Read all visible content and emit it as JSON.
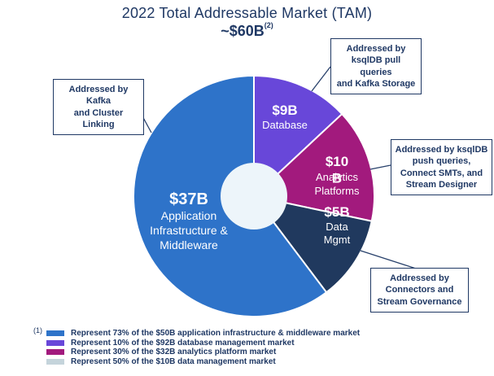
{
  "page": {
    "background": "#FFFFFF",
    "text_color": "#1F3864"
  },
  "title": {
    "line1": "2022 Total Addressable Market (TAM)",
    "line2": "~$60B",
    "line2_superscript": "(2)"
  },
  "chart_data": {
    "type": "pie",
    "title": "2022 Total Addressable Market (TAM)",
    "subtitle": "~$60B",
    "total_value": 60,
    "units": "$B",
    "hole_color": "#EDF5FA",
    "legend_position": "bottom-left",
    "segments": [
      {
        "name": "Database",
        "value": 9,
        "value_label": "$9B",
        "label_lines": [
          "Database"
        ],
        "color": "#6847D9",
        "start_angle": 0,
        "end_angle": 47
      },
      {
        "name": "Analytics Platforms",
        "value": 10,
        "value_label": "$10B",
        "value_display_line": "$10",
        "overlap_letter": "B",
        "label_lines": [
          "Analytics",
          "Platforms"
        ],
        "color": "#A21A7D",
        "start_angle": 47,
        "end_angle": 102
      },
      {
        "name": "Data Mgmt",
        "value": 5,
        "value_label": "$5B",
        "label_lines": [
          "Data",
          "Mgmt"
        ],
        "color": "#20395E",
        "start_angle": 102,
        "end_angle": 143
      },
      {
        "name": "Application Infrastructure & Middleware",
        "value": 37,
        "value_label": "$37B",
        "label_lines": [
          "Application",
          "Infrastructure &",
          "Middleware"
        ],
        "color": "#2E73C9",
        "start_angle": 143,
        "end_angle": 360
      }
    ]
  },
  "callouts": [
    {
      "lines": [
        "Addressed by Kafka",
        "and Cluster Linking"
      ]
    },
    {
      "lines": [
        "Addressed by",
        "ksqlDB pull queries",
        "and Kafka Storage"
      ]
    },
    {
      "lines": [
        "Addressed by ksqlDB",
        "push queries,",
        "Connect SMTs, and",
        "Stream Designer"
      ]
    },
    {
      "lines": [
        "Addressed by",
        "Connectors and",
        "Stream Governance"
      ]
    }
  ],
  "legend": {
    "footnote_marker": "(1)",
    "items": [
      {
        "swatch_color": "#2E73C9",
        "text": "Represent 73% of the $50B application infrastructure & middleware market"
      },
      {
        "swatch_color": "#6847D9",
        "text": "Represent 10% of the $92B database management market"
      },
      {
        "swatch_color": "#A21A7D",
        "text": "Represent 30% of the $32B analytics platform market"
      },
      {
        "swatch_color": "#C5D4DB",
        "text": "Represent 50% of the $10B data management market"
      }
    ]
  }
}
